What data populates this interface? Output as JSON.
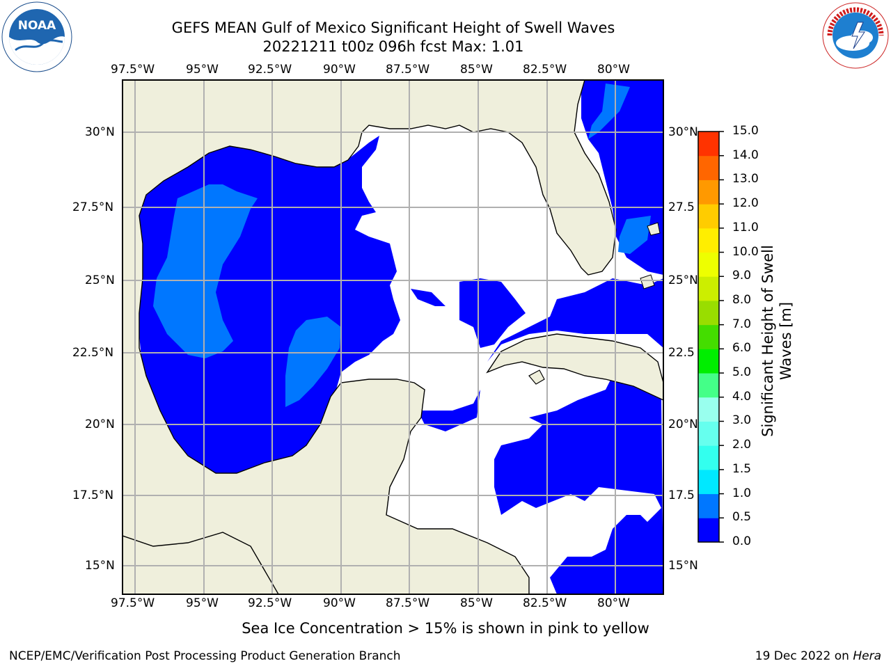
{
  "header": {
    "title_line1": "GEFS MEAN Gulf of Mexico Significant Height of Swell Waves",
    "title_line2": "20221211 t00z 096h fcst   Max: 1.01",
    "noaa_logo": "noaa-logo",
    "nws_logo": "nws-logo"
  },
  "map": {
    "lon_labels": [
      "97.5°W",
      "95°W",
      "92.5°W",
      "90°W",
      "87.5°W",
      "85°W",
      "82.5°W",
      "80°W"
    ],
    "lat_labels": [
      "30°N",
      "27.5°N",
      "25°N",
      "22.5°N",
      "20°N",
      "17.5°N",
      "15°N"
    ],
    "lat_labels_right": [
      "30°N",
      "27.5",
      "25°N",
      "22.5",
      "20°N",
      "17.5",
      "15°N"
    ],
    "colors": {
      "land": "#efefdc",
      "swell_0_0_5": "#0000ff",
      "swell_0_5_1_0": "#0077ff",
      "ocean_nodata": "#ffffff",
      "grid": "#b0b0b0"
    }
  },
  "colorbar": {
    "label_line1": "Significant Height of Swell",
    "label_line2": "Waves [m]",
    "ticks": [
      "0.0",
      "0.5",
      "1.0",
      "1.5",
      "2.0",
      "3.0",
      "4.0",
      "5.0",
      "6.0",
      "7.0",
      "8.0",
      "9.0",
      "10.0",
      "11.0",
      "12.0",
      "13.0",
      "14.0",
      "15.0"
    ],
    "colors": [
      "#0000ff",
      "#0077ff",
      "#00e8ff",
      "#33ffee",
      "#66ffee",
      "#99ffee",
      "#44ff88",
      "#00ee00",
      "#44dd00",
      "#99dd00",
      "#ccee00",
      "#eeff00",
      "#ffee00",
      "#ffcc00",
      "#ff9900",
      "#ff6600",
      "#ff3300",
      "#ff0000"
    ]
  },
  "note": "Sea Ice Concentration > 15% is shown in pink to yellow",
  "footer": {
    "left": "NCEP/EMC/Verification Post Processing Product Generation Branch",
    "right_prefix": "19 Dec 2022 on ",
    "right_host": "Hera"
  }
}
